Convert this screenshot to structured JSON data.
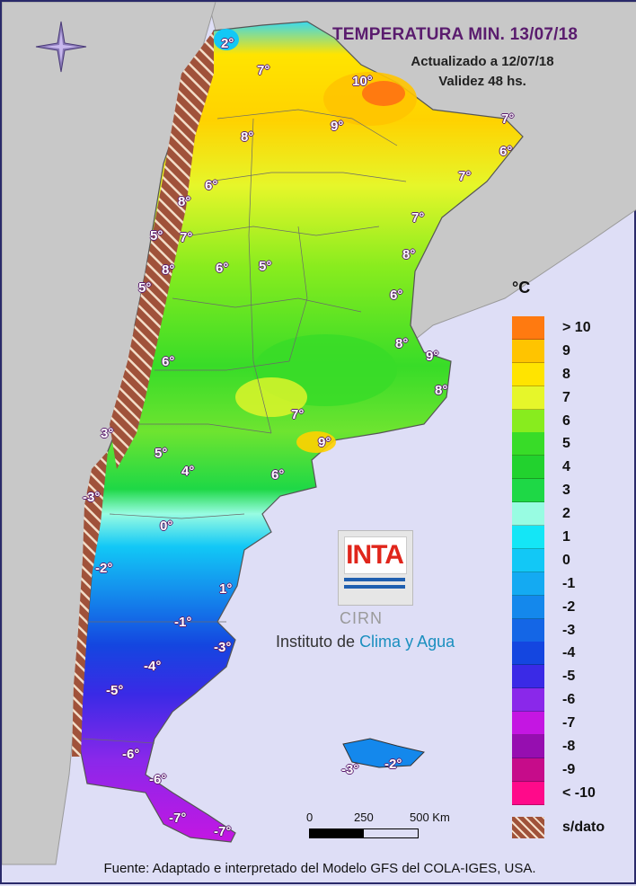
{
  "header": {
    "title": "TEMPERATURA MIN. 13/07/18",
    "updated": "Actualizado a 12/07/18",
    "validity": "Validez 48 hs."
  },
  "legend": {
    "unit": "°C",
    "items": [
      {
        "label": "> 10",
        "color": "#ff7a10"
      },
      {
        "label": "9",
        "color": "#ffc400"
      },
      {
        "label": "8",
        "color": "#ffe400"
      },
      {
        "label": "7",
        "color": "#e6f62a"
      },
      {
        "label": "6",
        "color": "#88ec1e"
      },
      {
        "label": "5",
        "color": "#38dc28"
      },
      {
        "label": "4",
        "color": "#22d22e"
      },
      {
        "label": "3",
        "color": "#1ed846"
      },
      {
        "label": "2",
        "color": "#98fce2"
      },
      {
        "label": "1",
        "color": "#14e6f6"
      },
      {
        "label": "0",
        "color": "#12c8f6"
      },
      {
        "label": "-1",
        "color": "#14aaf2"
      },
      {
        "label": "-2",
        "color": "#1488ec"
      },
      {
        "label": "-3",
        "color": "#1466e6"
      },
      {
        "label": "-4",
        "color": "#1446e0"
      },
      {
        "label": "-5",
        "color": "#3a2ae6"
      },
      {
        "label": "-6",
        "color": "#8a28ea"
      },
      {
        "label": "-7",
        "color": "#c416e2"
      },
      {
        "label": "-8",
        "color": "#960eb0"
      },
      {
        "label": "-9",
        "color": "#c60c8a"
      },
      {
        "label": "< -10",
        "color": "#ff0a8a"
      }
    ],
    "nodata_label": "s/dato"
  },
  "scale": {
    "ticks": [
      "0",
      "250",
      "500 Km"
    ]
  },
  "logo": {
    "inta": "INTA",
    "cirn": "CIRN",
    "institute_prefix": "Instituto de ",
    "institute_highlight": "Clima y Agua"
  },
  "footer": "Fuente: Adaptado e interpretado del Modelo GFS del COLA-IGES, USA.",
  "labels": [
    {
      "text": "2°"
    },
    {
      "text": "7°"
    },
    {
      "text": "10°"
    },
    {
      "text": "9°"
    },
    {
      "text": "7°"
    },
    {
      "text": "6°"
    },
    {
      "text": "7°"
    },
    {
      "text": "8°"
    },
    {
      "text": "6°"
    },
    {
      "text": "8°"
    },
    {
      "text": "5°"
    },
    {
      "text": "7°"
    },
    {
      "text": "7°"
    },
    {
      "text": "8°"
    },
    {
      "text": "8°"
    },
    {
      "text": "6°"
    },
    {
      "text": "5°"
    },
    {
      "text": "5°"
    },
    {
      "text": "6°"
    },
    {
      "text": "8°"
    },
    {
      "text": "9°"
    },
    {
      "text": "6°"
    },
    {
      "text": "8°"
    },
    {
      "text": "7°"
    },
    {
      "text": "3°"
    },
    {
      "text": "9°"
    },
    {
      "text": "5°"
    },
    {
      "text": "4°"
    },
    {
      "text": "6°"
    },
    {
      "text": "-3°"
    },
    {
      "text": "0°"
    },
    {
      "text": "-2°"
    },
    {
      "text": "1°"
    },
    {
      "text": "-1°"
    },
    {
      "text": "-3°"
    },
    {
      "text": "-4°"
    },
    {
      "text": "-5°"
    },
    {
      "text": "-6°"
    },
    {
      "text": "-6°"
    },
    {
      "text": "-7°"
    },
    {
      "text": "-7°"
    },
    {
      "text": "-3°"
    },
    {
      "text": "-2°"
    }
  ]
}
